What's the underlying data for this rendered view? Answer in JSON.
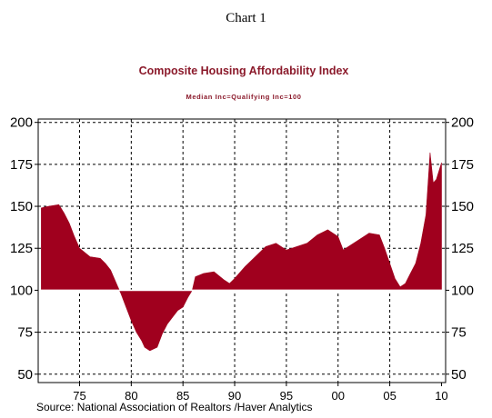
{
  "page_heading": "Chart 1",
  "chart_data": {
    "type": "area",
    "title": "Composite Housing Affordability Index",
    "subtitle": "Median Inc=Qualifying Inc=100",
    "source": "Source:  National Association of Realtors /Haver Analytics",
    "xlabel": "",
    "ylabel": "",
    "baseline": 100,
    "xlim": [
      1971,
      2010.4
    ],
    "ylim": [
      45,
      202
    ],
    "x_ticks": [
      {
        "x": 1975,
        "label": "75"
      },
      {
        "x": 1980,
        "label": "80"
      },
      {
        "x": 1985,
        "label": "85"
      },
      {
        "x": 1990,
        "label": "90"
      },
      {
        "x": 1995,
        "label": "95"
      },
      {
        "x": 2000,
        "label": "00"
      },
      {
        "x": 2005,
        "label": "05"
      },
      {
        "x": 2010,
        "label": "10"
      }
    ],
    "y_ticks": [
      {
        "y": 200,
        "label": "200"
      },
      {
        "y": 175,
        "label": "175"
      },
      {
        "y": 150,
        "label": "150"
      },
      {
        "y": 125,
        "label": "125"
      },
      {
        "y": 100,
        "label": "100"
      },
      {
        "y": 75,
        "label": "75"
      },
      {
        "y": 50,
        "label": "50"
      }
    ],
    "grid": true,
    "fill_color": "#a0001e",
    "axis_color": "#000000",
    "series": [
      {
        "x": [
          1971.3,
          1972.0,
          1973.0,
          1973.5,
          1974.0,
          1974.5,
          1975.0,
          1976.0,
          1977.0,
          1977.5,
          1978.0,
          1978.7,
          1979.0,
          1979.5,
          1980.0,
          1980.5,
          1981.0,
          1981.3,
          1981.8,
          1982.5,
          1983.0,
          1983.5,
          1984.0,
          1984.5,
          1985.0,
          1985.5,
          1985.9,
          1986.2,
          1987.0,
          1988.0,
          1989.0,
          1989.5,
          1990.0,
          1991.0,
          1992.0,
          1993.0,
          1994.0,
          1995.0,
          1996.0,
          1997.0,
          1998.0,
          1999.0,
          2000.0,
          2000.5,
          2001.0,
          2002.0,
          2003.0,
          2004.0,
          2004.5,
          2005.0,
          2005.5,
          2006.0,
          2006.5,
          2007.0,
          2007.5,
          2008.0,
          2008.5,
          2008.9,
          2009.2,
          2009.5,
          2010.0
        ],
        "values": [
          149,
          150,
          151,
          146,
          140,
          132,
          125,
          120,
          119,
          116,
          112,
          102,
          98,
          90,
          82,
          75,
          70,
          66,
          64,
          66,
          74,
          80,
          84,
          88,
          90,
          96,
          100,
          108,
          110,
          111,
          106,
          104,
          107,
          114,
          120,
          126,
          128,
          124,
          126,
          128,
          133,
          136,
          132,
          124,
          126,
          130,
          134,
          133,
          125,
          116,
          107,
          102,
          104,
          110,
          116,
          128,
          145,
          182,
          164,
          166,
          176
        ]
      }
    ]
  }
}
